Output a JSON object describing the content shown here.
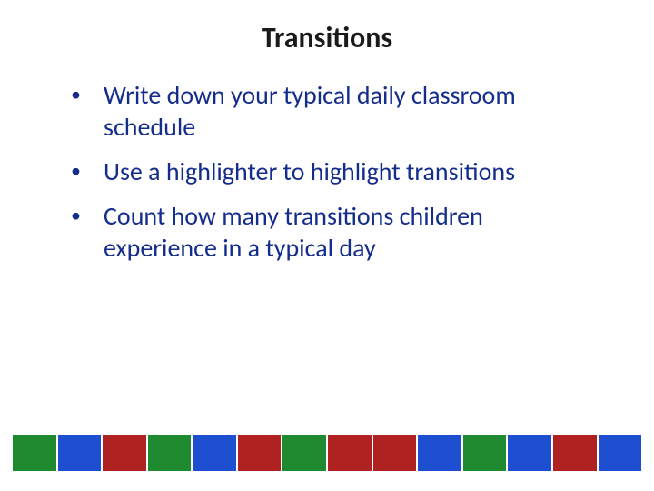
{
  "title": "Transitions",
  "title_color": "#1a1a1a",
  "title_fontsize": 32,
  "bullet_color": "#142d8c",
  "bullet_fontsize": 28,
  "bullets": [
    "Write down your typical daily classroom schedule",
    "Use a highlighter to highlight transitions",
    "Count how many transitions children experience in a typical day"
  ],
  "footer_segments": [
    "#1f8a2f",
    "#1f4fd1",
    "#b02121",
    "#1f8a2f",
    "#1f4fd1",
    "#b02121",
    "#1f8a2f",
    "#b02121",
    "#b02121",
    "#1f4fd1",
    "#1f8a2f",
    "#1f4fd1",
    "#b02121",
    "#1f4fd1"
  ],
  "background_color": "#ffffff"
}
